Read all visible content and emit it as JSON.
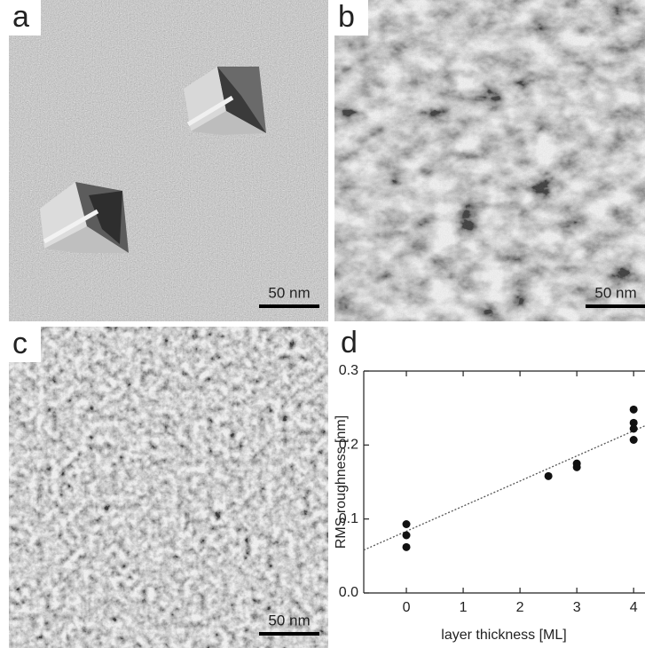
{
  "panels": [
    {
      "label": "a",
      "scale_bar": "50 nm"
    },
    {
      "label": "b",
      "scale_bar": "50 nm"
    },
    {
      "label": "c",
      "scale_bar": "50 nm"
    }
  ],
  "chart_data": {
    "type": "scatter",
    "panel_label": "d",
    "x_label": "layer thickness [ML]",
    "y_label": "RMS roughness  [nm]",
    "x": [
      0,
      0,
      0,
      2.5,
      3,
      3,
      4,
      4,
      4,
      4
    ],
    "series": [
      {
        "color": "#111111",
        "values": [
          0.093,
          0.078,
          0.062,
          0.158,
          0.175,
          0.17,
          0.248,
          0.23,
          0.222,
          0.207
        ]
      }
    ],
    "fit": {
      "x": [
        -0.75,
        4.2
      ],
      "values": [
        0.058,
        0.226
      ],
      "color": "#555555"
    },
    "xlim": [
      -0.75,
      4.2
    ],
    "ylim": [
      0,
      0.3
    ],
    "xticks": [
      0,
      1,
      2,
      3,
      4
    ],
    "yticks": [
      {
        "value": 0,
        "label": "0.0"
      },
      0.1,
      0.2,
      0.3
    ]
  }
}
